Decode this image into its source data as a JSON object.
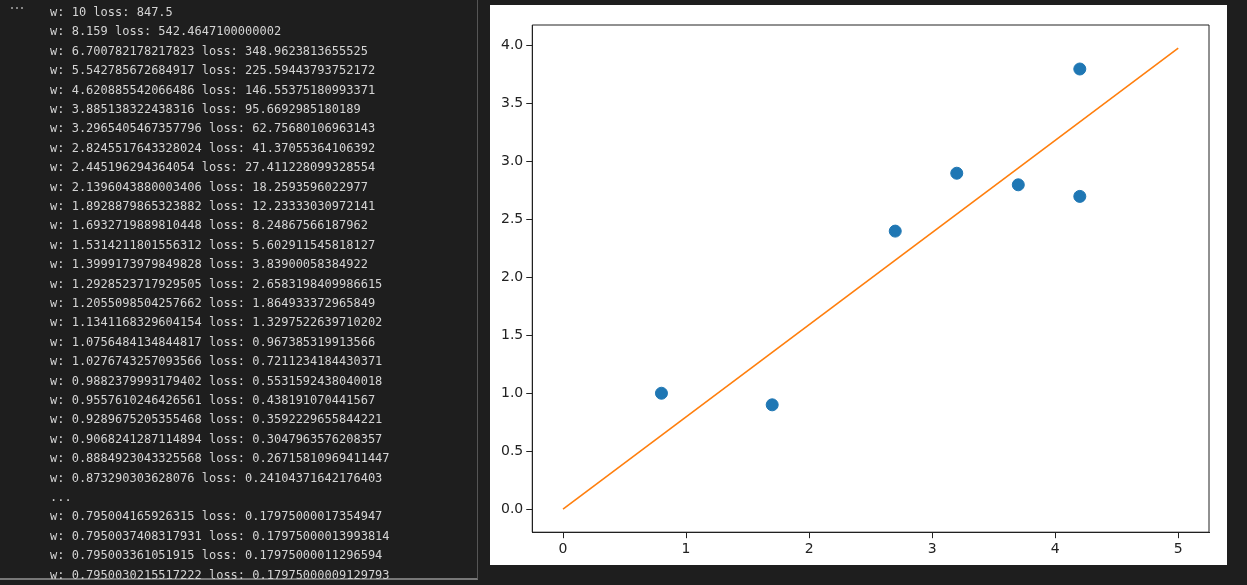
{
  "chart_data": {
    "type": "scatter",
    "x": [
      0.8,
      1.7,
      2.7,
      3.2,
      3.7,
      4.2,
      4.2
    ],
    "series": [
      {
        "color": "#1f77b4",
        "marker": "circle",
        "values": [
          1.0,
          0.9,
          2.4,
          2.9,
          2.8,
          3.8,
          2.7
        ]
      },
      {
        "type": "line",
        "color": "#ff7f0e",
        "x": [
          0,
          5
        ],
        "values": [
          0,
          3.98
        ],
        "marker": "none",
        "line_style": "solid"
      }
    ],
    "xlim": [
      -0.25,
      5.25
    ],
    "xticks": [
      0,
      1,
      2,
      3,
      4,
      5
    ],
    "ylim": [
      -0.2,
      4.18
    ],
    "yticks": [
      {
        "value": 0,
        "label": "0.0"
      },
      {
        "value": 0.5,
        "label": "0.5"
      },
      {
        "value": 1,
        "label": "1.0"
      },
      {
        "value": 1.5,
        "label": "1.5"
      },
      {
        "value": 2,
        "label": "2.0"
      },
      {
        "value": 2.5,
        "label": "2.5"
      },
      {
        "value": 3,
        "label": "3.0"
      },
      {
        "value": 3.5,
        "label": "3.5"
      },
      {
        "value": 4,
        "label": "4.0"
      }
    ],
    "grid": false,
    "legend": false,
    "annotations": [
      "w: 10 loss: 847.5",
      "w: 8.159 loss: 542.4647100000002",
      "w: 6.700782178217823 loss: 348.9623813655525",
      "w: 5.542785672684917 loss: 225.59443793752172",
      "w: 4.620885542066486 loss: 146.55375180993371",
      "w: 3.885138322438316 loss: 95.6692985180189",
      "w: 3.2965405467357796 loss: 62.75680106963143",
      "w: 2.8245517643328024 loss: 41.37055364106392",
      "w: 2.445196294364054 loss: 27.411228099328554",
      "w: 2.1396043880003406 loss: 18.2593596022977",
      "w: 1.8928879865323882 loss: 12.23333030972141",
      "w: 1.6932719889810448 loss: 8.24867566187962",
      "w: 1.5314211801556312 loss: 5.602911545818127",
      "w: 1.3999173979849828 loss: 3.83900058384922",
      "w: 1.2928523717929505 loss: 2.6583198409986615",
      "w: 1.2055098504257662 loss: 1.864933372965849",
      "w: 1.1341168329604154 loss: 1.3297522639710202",
      "w: 1.0756484134844817 loss: 0.967385319913566",
      "w: 1.0276743257093566 loss: 0.7211234184430371",
      "w: 0.9882379993179402 loss: 0.5531592438040018",
      "w: 0.9557610246426561 loss: 0.438191070441567",
      "w: 0.9289675205355468 loss: 0.3592229655844221",
      "w: 0.9068241287114894 loss: 0.3047963576208357",
      "w: 0.8884923043325568 loss: 0.26715810969411447",
      "w: 0.873290303628076 loss: 0.24104371642176403",
      "...",
      "w: 0.795004165926315 loss: 0.17975000017354947",
      "w: 0.7950037408317931 loss: 0.17975000013993814",
      "w: 0.795003361051915 loss: 0.17975000011296594",
      "w: 0.7950030215517222 loss: 0.17975000009129793"
    ]
  }
}
